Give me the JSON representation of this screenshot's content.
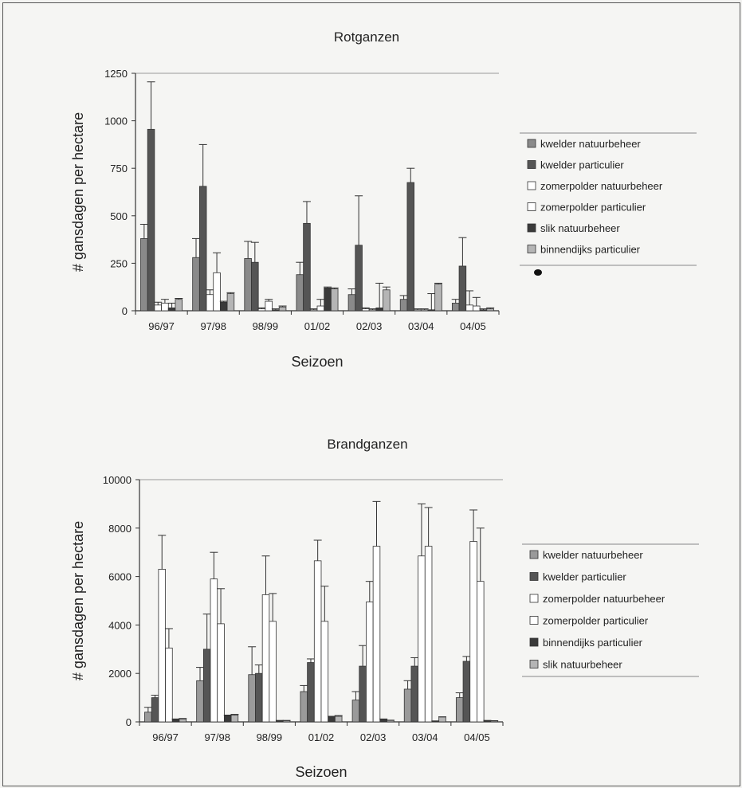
{
  "chart_data": [
    {
      "type": "bar",
      "title": "Rotganzen",
      "xlabel": "Seizoen",
      "ylabel": "# gansdagen per hectare",
      "ylim": [
        0,
        1250
      ],
      "yticks": [
        0,
        250,
        500,
        750,
        1000,
        1250
      ],
      "categories": [
        "96/97",
        "97/98",
        "98/99",
        "01/02",
        "02/03",
        "03/04",
        "04/05"
      ],
      "legend_position": "right",
      "series": [
        {
          "name": "kwelder natuurbeheer",
          "color": "#8a8a8a",
          "values": [
            380,
            280,
            275,
            190,
            85,
            60,
            40
          ],
          "errors": [
            75,
            100,
            90,
            65,
            30,
            20,
            20
          ]
        },
        {
          "name": "kwelder particulier",
          "color": "#555555",
          "values": [
            955,
            655,
            255,
            460,
            345,
            675,
            235
          ],
          "errors": [
            250,
            220,
            105,
            115,
            260,
            75,
            150
          ]
        },
        {
          "name": "zomerpolder natuurbeheer",
          "color": "#ffffff",
          "values": [
            30,
            85,
            10,
            5,
            10,
            5,
            30
          ],
          "errors": [
            15,
            25,
            5,
            5,
            5,
            5,
            75
          ]
        },
        {
          "name": "zomerpolder particulier",
          "color": "#ffffff",
          "values": [
            40,
            200,
            50,
            25,
            5,
            5,
            25
          ],
          "errors": [
            20,
            105,
            10,
            35,
            5,
            5,
            45
          ]
        },
        {
          "name": "slik natuurbeheer",
          "color": "#3a3a3a",
          "values": [
            15,
            45,
            5,
            120,
            15,
            5,
            5
          ],
          "errors": [
            25,
            5,
            5,
            5,
            130,
            85,
            5
          ]
        },
        {
          "name": "binnendijks particulier",
          "color": "#b5b5b5",
          "values": [
            60,
            90,
            20,
            115,
            110,
            140,
            10
          ],
          "errors": [
            5,
            5,
            5,
            5,
            15,
            5,
            5
          ]
        }
      ]
    },
    {
      "type": "bar",
      "title": "Brandganzen",
      "xlabel": "Seizoen",
      "ylabel": "# gansdagen per hectare",
      "ylim": [
        0,
        10000
      ],
      "yticks": [
        0,
        2000,
        4000,
        6000,
        8000,
        10000
      ],
      "categories": [
        "96/97",
        "97/98",
        "98/99",
        "01/02",
        "02/03",
        "03/04",
        "04/05"
      ],
      "legend_position": "right",
      "series": [
        {
          "name": "kwelder natuurbeheer",
          "color": "#9a9a9a",
          "values": [
            400,
            1700,
            1950,
            1250,
            900,
            1350,
            1000
          ],
          "errors": [
            200,
            550,
            1150,
            250,
            350,
            350,
            200
          ]
        },
        {
          "name": "kwelder particulier",
          "color": "#555555",
          "values": [
            1000,
            3000,
            2000,
            2450,
            2300,
            2300,
            2500
          ],
          "errors": [
            100,
            1450,
            350,
            150,
            850,
            350,
            200
          ]
        },
        {
          "name": "zomerpolder natuurbeheer",
          "color": "#ffffff",
          "values": [
            6300,
            5900,
            5250,
            6650,
            4950,
            6850,
            7450
          ],
          "errors": [
            1400,
            1100,
            1600,
            850,
            850,
            2150,
            1300
          ]
        },
        {
          "name": "zomerpolder particulier",
          "color": "#ffffff",
          "values": [
            3050,
            4050,
            4150,
            4150,
            7250,
            7250,
            5800
          ],
          "errors": [
            800,
            1450,
            1150,
            1450,
            1850,
            1600,
            2200
          ]
        },
        {
          "name": "binnendijks particulier",
          "color": "#3a3a3a",
          "values": [
            100,
            250,
            50,
            200,
            100,
            30,
            50
          ],
          "errors": [
            20,
            30,
            10,
            30,
            20,
            10,
            10
          ]
        },
        {
          "name": "slik natuurbeheer",
          "color": "#b5b5b5",
          "values": [
            120,
            280,
            50,
            230,
            60,
            200,
            40
          ],
          "errors": [
            20,
            30,
            10,
            30,
            10,
            10,
            10
          ]
        }
      ]
    }
  ]
}
